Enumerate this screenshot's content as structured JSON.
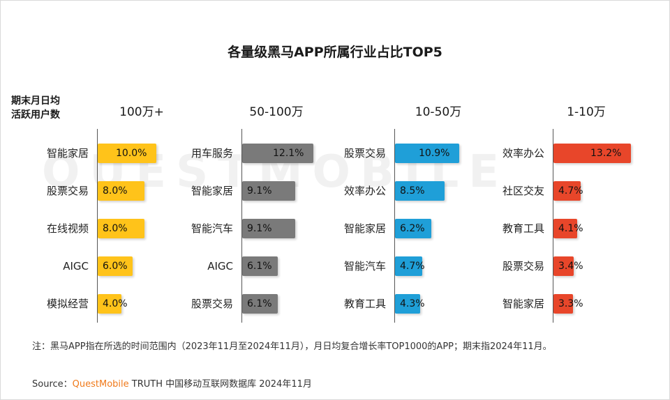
{
  "title": "各量级黑马APP所属行业占比TOP5",
  "axis_title_lines": [
    "期末月日均",
    "活跃用户数"
  ],
  "watermark": "QUESTMOBILE",
  "chart_data": {
    "type": "bar",
    "orientation": "horizontal",
    "value_unit": "%",
    "groups": [
      {
        "name": "100万+",
        "color": "#ffc31a",
        "categories": [
          "智能家居",
          "股票交易",
          "在线视频",
          "AIGC",
          "模拟经营"
        ],
        "values": [
          10.0,
          8.0,
          8.0,
          6.0,
          4.0
        ],
        "labels": [
          "10.0%",
          "8.0%",
          "8.0%",
          "6.0%",
          "4.0%"
        ]
      },
      {
        "name": "50-100万",
        "color": "#7a7a7a",
        "categories": [
          "用车服务",
          "智能家居",
          "智能汽车",
          "AIGC",
          "股票交易"
        ],
        "values": [
          12.1,
          9.1,
          9.1,
          6.1,
          6.1
        ],
        "labels": [
          "12.1%",
          "9.1%",
          "9.1%",
          "6.1%",
          "6.1%"
        ]
      },
      {
        "name": "10-50万",
        "color": "#1f9fd8",
        "categories": [
          "股票交易",
          "效率办公",
          "智能家居",
          "智能汽车",
          "教育工具"
        ],
        "values": [
          10.9,
          8.5,
          6.2,
          4.7,
          4.3
        ],
        "labels": [
          "10.9%",
          "8.5%",
          "6.2%",
          "4.7%",
          "4.3%"
        ]
      },
      {
        "name": "1-10万",
        "color": "#e8462a",
        "categories": [
          "效率办公",
          "社区交友",
          "教育工具",
          "股票交易",
          "智能家居"
        ],
        "values": [
          13.2,
          4.7,
          4.1,
          3.4,
          3.3
        ],
        "labels": [
          "13.2%",
          "4.7%",
          "4.1%",
          "3.4%",
          "3.3%"
        ]
      }
    ]
  },
  "note": "注：黑马APP指在所选的时间范围内（2023年11月至2024年11月），月日均复合增长率TOP1000的APP；期末指2024年11月。",
  "source": {
    "prefix": "Source：",
    "brand": "QuestMobile",
    "suffix": " TRUTH 中国移动互联网数据库 2024年11月"
  }
}
